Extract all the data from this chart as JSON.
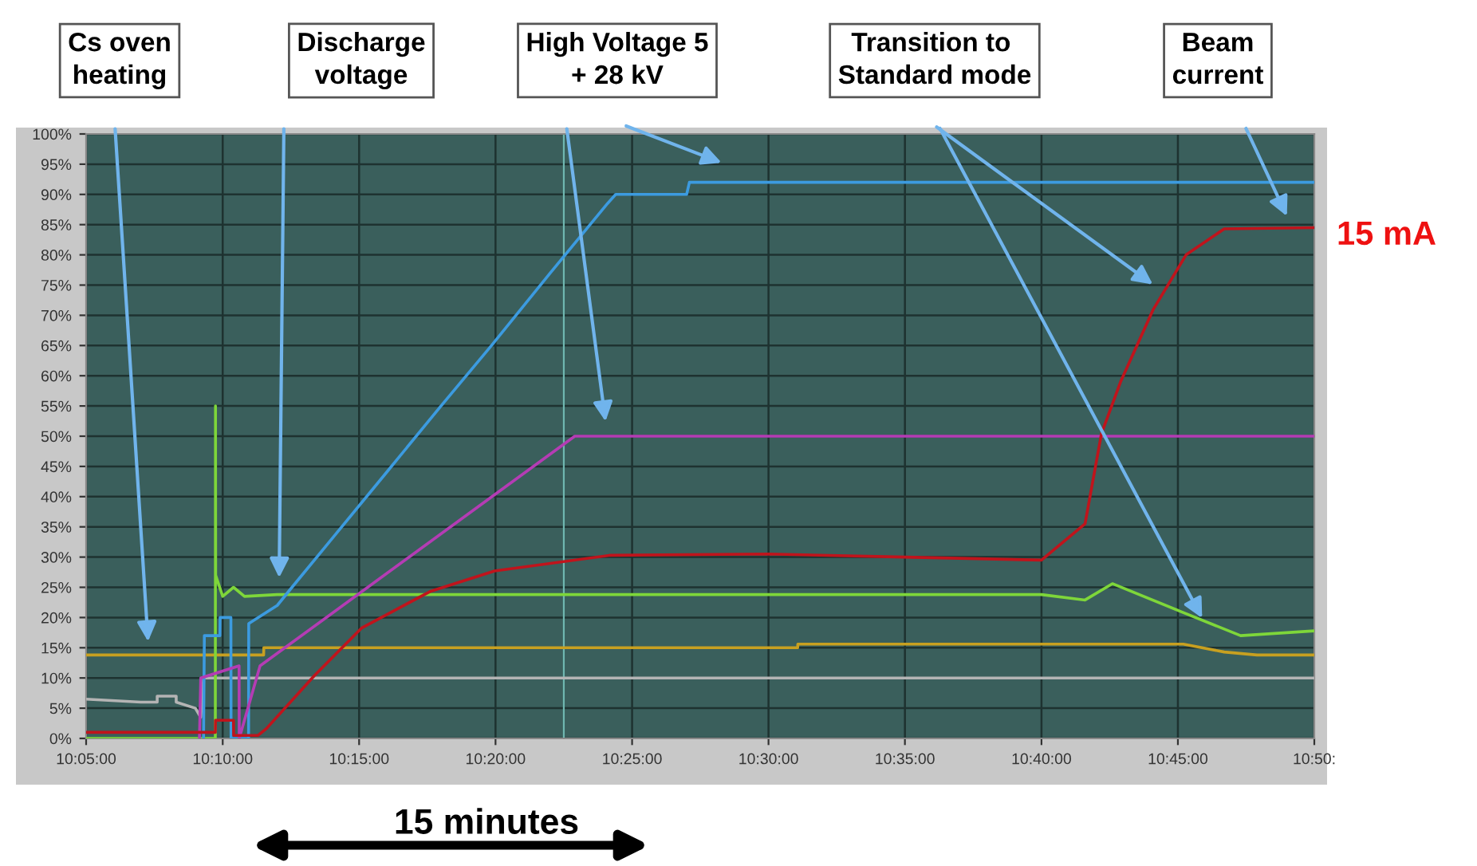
{
  "chart_data": {
    "type": "line",
    "xlim": [
      10.0833,
      10.8333
    ],
    "xticks": [
      {
        "value": 10.0833,
        "label": "10:05:00"
      },
      {
        "value": 10.1667,
        "label": "10:10:00"
      },
      {
        "value": 10.25,
        "label": "10:15:00"
      },
      {
        "value": 10.3333,
        "label": "10:20:00"
      },
      {
        "value": 10.4167,
        "label": "10:25:00"
      },
      {
        "value": 10.5,
        "label": "10:30:00"
      },
      {
        "value": 10.5833,
        "label": "10:35:00"
      },
      {
        "value": 10.6667,
        "label": "10:40:00"
      },
      {
        "value": 10.75,
        "label": "10:45:00"
      },
      {
        "value": 10.8333,
        "label": "10:50:"
      }
    ],
    "ylim": [
      0,
      100
    ],
    "yticks": [
      {
        "value": 0,
        "label": "0%"
      },
      {
        "value": 5,
        "label": "5%"
      },
      {
        "value": 10,
        "label": "10%"
      },
      {
        "value": 15,
        "label": "15%"
      },
      {
        "value": 20,
        "label": "20%"
      },
      {
        "value": 25,
        "label": "25%"
      },
      {
        "value": 30,
        "label": "30%"
      },
      {
        "value": 35,
        "label": "35%"
      },
      {
        "value": 40,
        "label": "40%"
      },
      {
        "value": 45,
        "label": "45%"
      },
      {
        "value": 50,
        "label": "50%"
      },
      {
        "value": 55,
        "label": "55%"
      },
      {
        "value": 60,
        "label": "60%"
      },
      {
        "value": 65,
        "label": "65%"
      },
      {
        "value": 70,
        "label": "70%"
      },
      {
        "value": 75,
        "label": "75%"
      },
      {
        "value": 80,
        "label": "80%"
      },
      {
        "value": 85,
        "label": "85%"
      },
      {
        "value": 90,
        "label": "90%"
      },
      {
        "value": 95,
        "label": "95%"
      },
      {
        "value": 100,
        "label": "100%"
      }
    ],
    "grid": true,
    "marker": "none",
    "line_style": "solid",
    "series": [
      {
        "color": "#b4b4b4",
        "x": [
          10.0833,
          10.1167,
          10.1267,
          10.1267,
          10.1383,
          10.1383,
          10.15,
          10.1533,
          10.155,
          10.1667,
          10.3,
          10.5,
          10.8333
        ],
        "values": [
          6.5,
          6,
          6,
          7,
          7,
          6,
          5,
          3.5,
          10,
          10,
          10,
          10,
          10
        ]
      },
      {
        "color": "#c8a020",
        "x": [
          10.0833,
          10.1917,
          10.1918,
          10.5178,
          10.5179,
          10.7533,
          10.7783,
          10.7983,
          10.8333
        ],
        "values": [
          13.8,
          13.8,
          15,
          15,
          15.6,
          15.6,
          14.3,
          13.8,
          13.8
        ]
      },
      {
        "color": "#7ed63a",
        "x": [
          10.0833,
          10.1622,
          10.1623,
          10.1624,
          10.1667,
          10.1733,
          10.18,
          10.2,
          10.6667,
          10.6933,
          10.71,
          10.7517,
          10.7883,
          10.8333
        ],
        "values": [
          0,
          0,
          55,
          27,
          23.5,
          25,
          23.5,
          23.8,
          23.8,
          22.9,
          25.6,
          21,
          17,
          17.8
        ]
      },
      {
        "color": "#3c9be0",
        "x": [
          10.155,
          10.1555,
          10.165,
          10.1651,
          10.1717,
          10.1718,
          10.1825,
          10.1826,
          10.2,
          10.209,
          10.2333,
          10.2667,
          10.3,
          10.3308,
          10.3667,
          10.4017,
          10.4067,
          10.45,
          10.4517,
          10.8333
        ],
        "values": [
          0,
          17,
          17,
          20,
          20,
          0,
          0,
          19,
          22,
          25,
          33,
          44,
          55,
          65,
          77,
          88.5,
          90,
          90,
          92,
          92
        ]
      },
      {
        "color": "#b43cb4",
        "x": [
          10.1525,
          10.1533,
          10.1767,
          10.1768,
          10.1895,
          10.3817,
          10.8333
        ],
        "values": [
          0,
          10,
          12,
          0,
          12,
          50,
          50
        ]
      },
      {
        "color": "#c0141c",
        "x": [
          10.0833,
          10.1622,
          10.1623,
          10.1733,
          10.1734,
          10.1883,
          10.1933,
          10.2227,
          10.2517,
          10.2933,
          10.3327,
          10.4033,
          10.5,
          10.5833,
          10.6667,
          10.6933,
          10.7033,
          10.715,
          10.735,
          10.755,
          10.7783,
          10.8333
        ],
        "values": [
          1,
          1,
          3,
          3,
          0.5,
          0.5,
          1.6,
          10.4,
          18.3,
          24.3,
          27.7,
          30.3,
          30.5,
          30,
          29.5,
          35.5,
          50.4,
          59,
          71,
          80,
          84.3,
          84.5
        ]
      }
    ],
    "ref_lines": [
      {
        "axis": "x",
        "value": 10.375,
        "color": "#6fb7b0"
      }
    ],
    "annotations": [
      "Cs oven heating",
      "Discharge voltage",
      "High Voltage 5 + 28 kV",
      "Transition to  Standard mode",
      "Beam current",
      "15 mA",
      "15 minutes"
    ]
  }
}
